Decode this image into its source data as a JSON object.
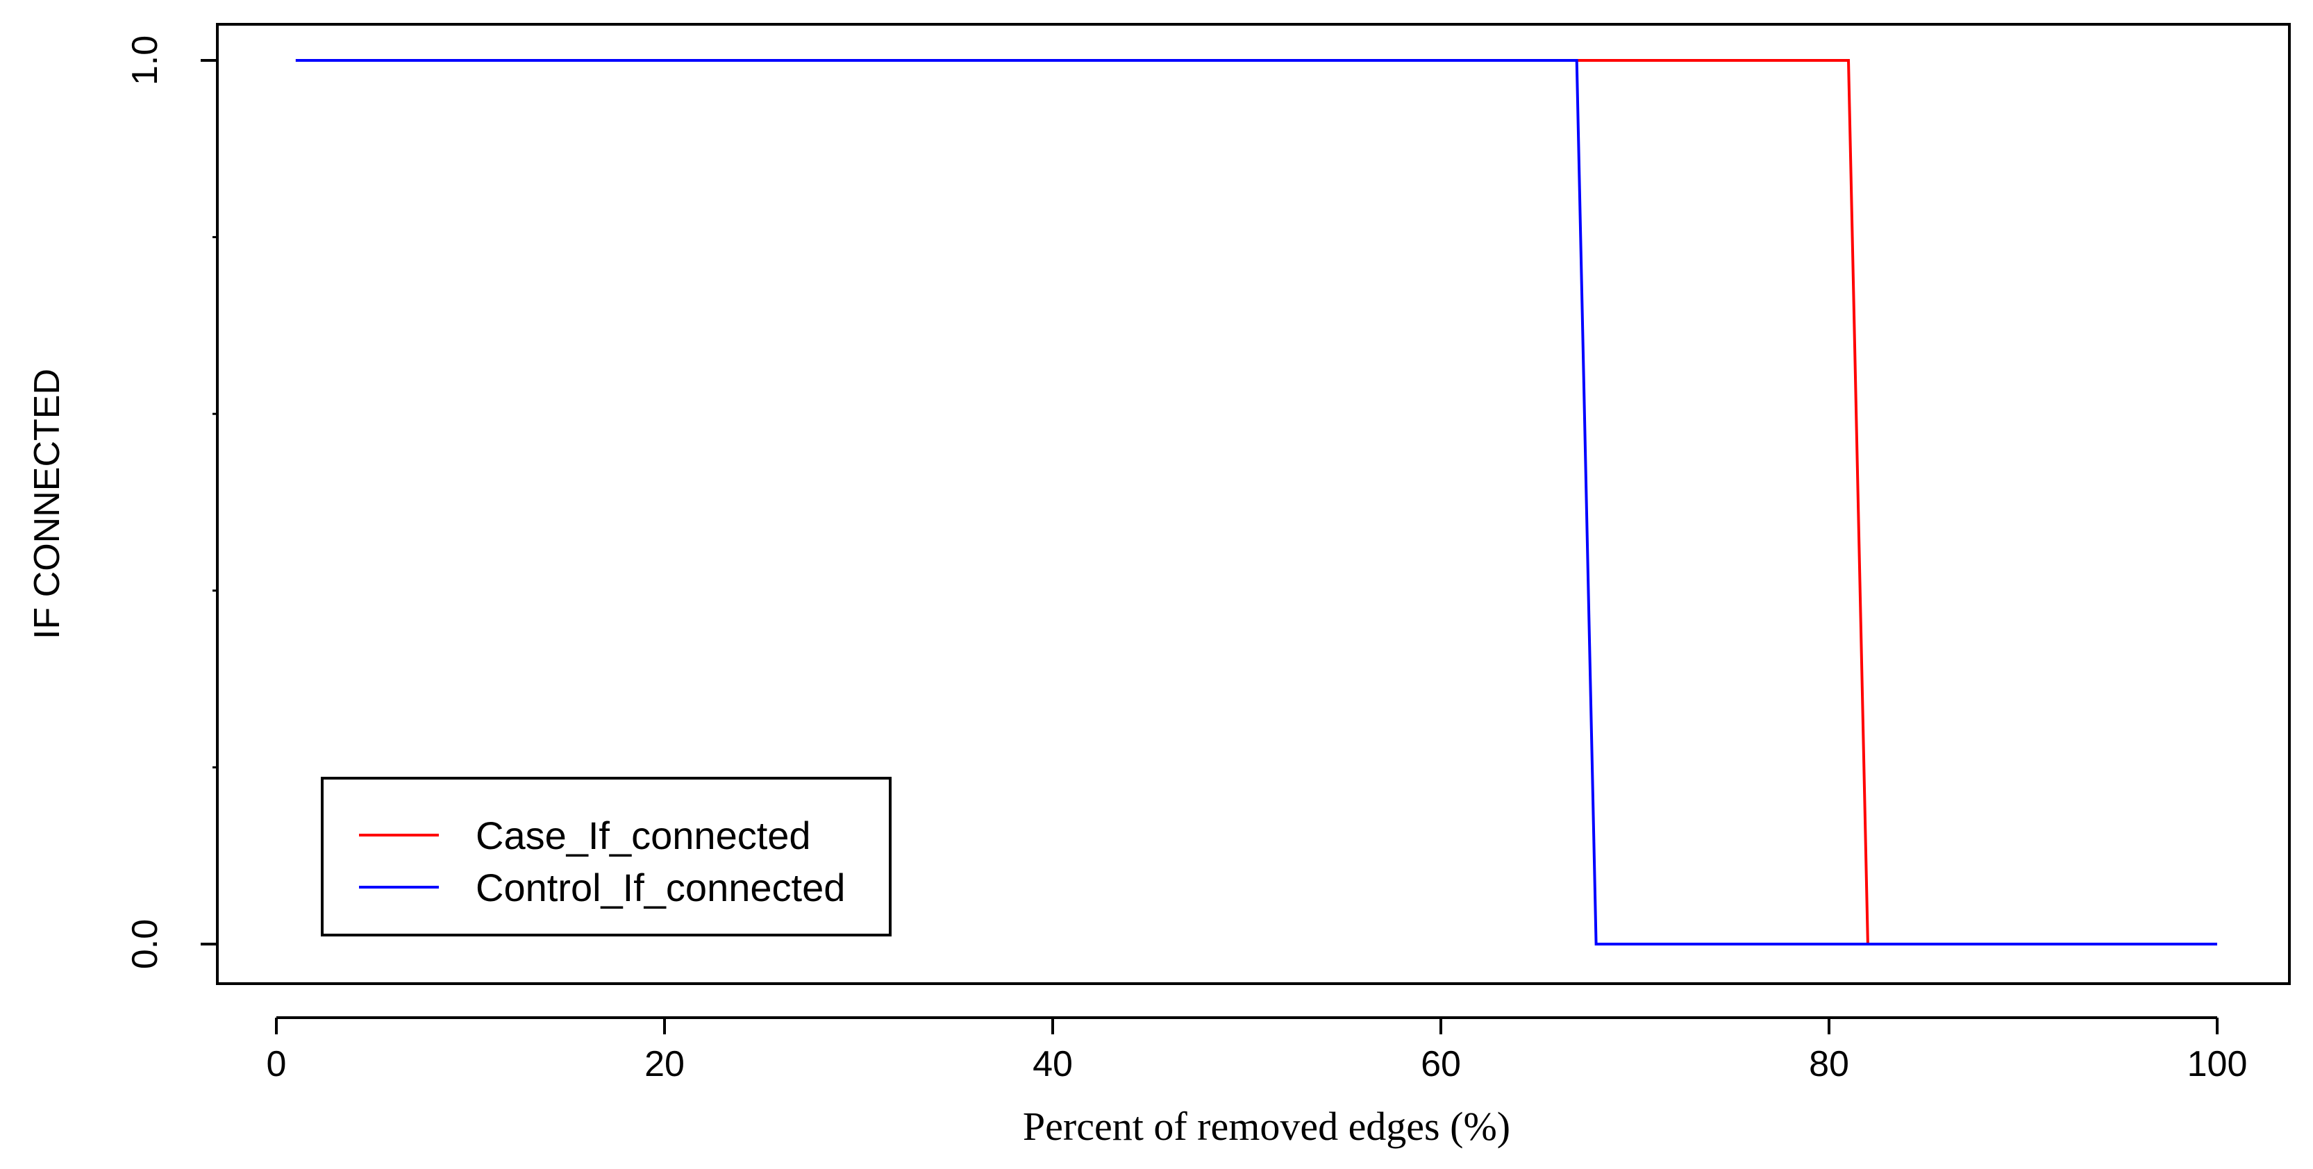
{
  "chart_data": {
    "type": "line",
    "title": "",
    "xlabel": "Percent of removed edges (%)",
    "ylabel": "IF CONNECTED",
    "xlim": [
      0,
      100
    ],
    "ylim": [
      0,
      1
    ],
    "x_ticks": [
      0,
      20,
      40,
      60,
      80,
      100
    ],
    "x_tick_labels": [
      "0",
      "20",
      "40",
      "60",
      "80",
      "100"
    ],
    "y_ticks": [
      0,
      1
    ],
    "y_tick_labels": [
      "0.0",
      "1.0"
    ],
    "y_minor_ticks": [
      0.2,
      0.4,
      0.6,
      0.8
    ],
    "grid": false,
    "legend_position": "bottom-left",
    "series": [
      {
        "name": "Case_If_connected",
        "color": "#ff0000",
        "x": [
          1,
          81,
          82,
          100
        ],
        "y": [
          1,
          1,
          0,
          0
        ]
      },
      {
        "name": "Control_If_connected",
        "color": "#0000ff",
        "x": [
          1,
          67,
          68,
          100
        ],
        "y": [
          1,
          1,
          0,
          0
        ]
      }
    ]
  }
}
